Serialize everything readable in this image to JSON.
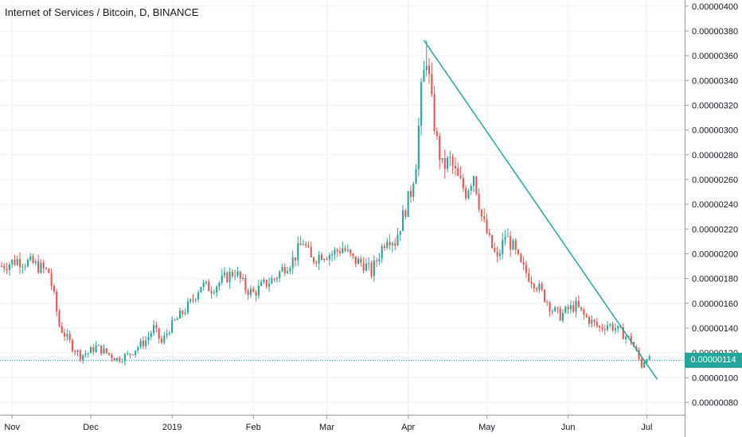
{
  "chart_data": {
    "type": "candlestick",
    "title": "Internet of Services / Bitcoin, D, BINANCE",
    "ylim": [
      7e-07,
      4.05e-06
    ],
    "y_ticks": [
      "0.00000080",
      "0.00000100",
      "0.00000120",
      "0.00000140",
      "0.00000160",
      "0.00000180",
      "0.00000200",
      "0.00000220",
      "0.00000240",
      "0.00000260",
      "0.00000280",
      "0.00000300",
      "0.00000320",
      "0.00000340",
      "0.00000360",
      "0.00000380",
      "0.00000400"
    ],
    "x_labels": [
      "Nov",
      "Dec",
      "2019",
      "Feb",
      "Mar",
      "Apr",
      "May",
      "Jun",
      "Jul"
    ],
    "x_label_days": [
      4,
      34,
      65,
      96,
      124,
      155,
      185,
      216,
      246
    ],
    "total_days": 258,
    "grid": true,
    "current_price": 1.14e-06,
    "current_price_label": "0.00000114",
    "up_color": "#26a69a",
    "down_color": "#ef5350",
    "trendline_color": "#26a69a",
    "trendline": [
      [
        161,
        3.725e-06
      ],
      [
        250,
        9.85e-07
      ]
    ],
    "close_points": [
      [
        0,
        1.9e-06
      ],
      [
        6,
        1.95e-06
      ],
      [
        12,
        1.92e-06
      ],
      [
        18,
        1.85e-06
      ],
      [
        20,
        1.65e-06
      ],
      [
        22,
        1.42e-06
      ],
      [
        24,
        1.35e-06
      ],
      [
        27,
        1.25e-06
      ],
      [
        30,
        1.18e-06
      ],
      [
        33,
        1.2e-06
      ],
      [
        36,
        1.25e-06
      ],
      [
        40,
        1.2e-06
      ],
      [
        44,
        1.15e-06
      ],
      [
        48,
        1.18e-06
      ],
      [
        52,
        1.25e-06
      ],
      [
        55,
        1.3e-06
      ],
      [
        58,
        1.4e-06
      ],
      [
        61,
        1.28e-06
      ],
      [
        64,
        1.4e-06
      ],
      [
        68,
        1.5e-06
      ],
      [
        72,
        1.6e-06
      ],
      [
        76,
        1.75e-06
      ],
      [
        80,
        1.72e-06
      ],
      [
        85,
        1.8e-06
      ],
      [
        89,
        1.86e-06
      ],
      [
        93,
        1.72e-06
      ],
      [
        96,
        1.68e-06
      ],
      [
        100,
        1.75e-06
      ],
      [
        104,
        1.8e-06
      ],
      [
        108,
        1.9e-06
      ],
      [
        111,
        1.95e-06
      ],
      [
        115,
        2.1e-06
      ],
      [
        118,
        1.95e-06
      ],
      [
        122,
        2e-06
      ],
      [
        126,
        2e-06
      ],
      [
        130,
        2.05e-06
      ],
      [
        134,
        1.95e-06
      ],
      [
        138,
        1.92e-06
      ],
      [
        141,
        1.85e-06
      ],
      [
        144,
        2e-06
      ],
      [
        147,
        2.15e-06
      ],
      [
        150,
        2.1e-06
      ],
      [
        153,
        2.3e-06
      ],
      [
        156,
        2.5e-06
      ],
      [
        158,
        2.75e-06
      ],
      [
        160,
        3.3e-06
      ],
      [
        162,
        3.6e-06
      ],
      [
        164,
        3.2e-06
      ],
      [
        166,
        2.9e-06
      ],
      [
        168,
        2.7e-06
      ],
      [
        171,
        2.75e-06
      ],
      [
        174,
        2.6e-06
      ],
      [
        177,
        2.5e-06
      ],
      [
        180,
        2.65e-06
      ],
      [
        183,
        2.3e-06
      ],
      [
        186,
        2.1e-06
      ],
      [
        189,
        1.95e-06
      ],
      [
        192,
        2.15e-06
      ],
      [
        195,
        2.05e-06
      ],
      [
        198,
        1.9e-06
      ],
      [
        201,
        1.82e-06
      ],
      [
        204,
        1.75e-06
      ],
      [
        207,
        1.65e-06
      ],
      [
        210,
        1.55e-06
      ],
      [
        213,
        1.5e-06
      ],
      [
        216,
        1.55e-06
      ],
      [
        219,
        1.58e-06
      ],
      [
        222,
        1.5e-06
      ],
      [
        225,
        1.45e-06
      ],
      [
        228,
        1.4e-06
      ],
      [
        231,
        1.43e-06
      ],
      [
        234,
        1.4e-06
      ],
      [
        237,
        1.35e-06
      ],
      [
        240,
        1.3e-06
      ],
      [
        242,
        1.2e-06
      ],
      [
        244,
        1.1e-06
      ],
      [
        246,
        1.18e-06
      ],
      [
        247,
        1.14e-06
      ]
    ]
  }
}
